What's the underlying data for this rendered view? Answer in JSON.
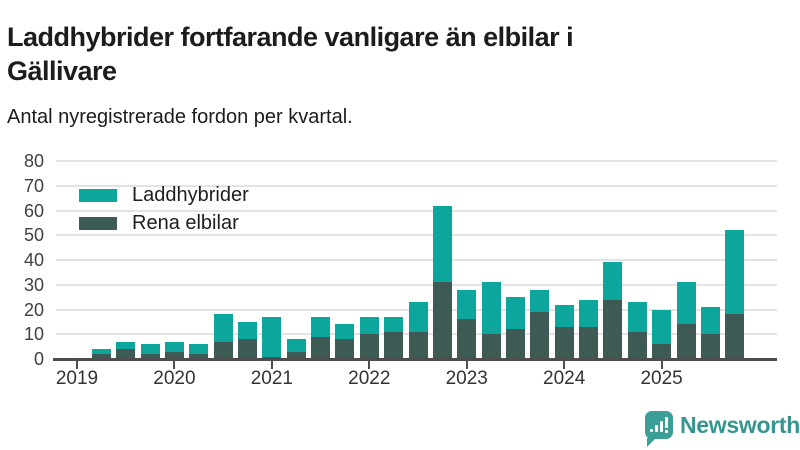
{
  "title": "Laddhybrider fortfarande vanligare än elbilar i Gällivare",
  "subtitle": "Antal nyregistrerade fordon per kvartal.",
  "colors": {
    "laddhybrider": "#0ca69d",
    "rena_elbilar": "#3d5a54",
    "gridline": "#e3e3e3",
    "axis": "#4d4d4d",
    "logo_teal": "#3b9e97"
  },
  "legend": [
    {
      "label": "Laddhybrider",
      "color": "#0ca69d"
    },
    {
      "label": "Rena elbilar",
      "color": "#3d5a54"
    }
  ],
  "chart_data": {
    "type": "bar",
    "stacked": true,
    "title": "Laddhybrider fortfarande vanligare än elbilar i Gällivare",
    "subtitle": "Antal nyregistrerade fordon per kvartal.",
    "categories": [
      "2019 Q1",
      "2019 Q2",
      "2019 Q3",
      "2019 Q4",
      "2020 Q1",
      "2020 Q2",
      "2020 Q3",
      "2020 Q4",
      "2021 Q1",
      "2021 Q2",
      "2021 Q3",
      "2021 Q4",
      "2022 Q1",
      "2022 Q2",
      "2022 Q3",
      "2022 Q4",
      "2023 Q1",
      "2023 Q2",
      "2023 Q3",
      "2023 Q4",
      "2024 Q1",
      "2024 Q2",
      "2024 Q3",
      "2024 Q4",
      "2025 Q1",
      "2025 Q2",
      "2025 Q3",
      "2025 Q4"
    ],
    "series": [
      {
        "name": "Rena elbilar",
        "color": "#3d5a54",
        "values": [
          0,
          2,
          4,
          2,
          3,
          2,
          7,
          8,
          1,
          3,
          9,
          8,
          10,
          11,
          11,
          31,
          16,
          10,
          12,
          19,
          13,
          13,
          24,
          11,
          6,
          14,
          10,
          18
        ]
      },
      {
        "name": "Laddhybrider",
        "color": "#0ca69d",
        "values": [
          0,
          2,
          3,
          4,
          4,
          4,
          11,
          7,
          16,
          5,
          8,
          6,
          7,
          6,
          12,
          31,
          12,
          21,
          13,
          9,
          9,
          11,
          15,
          12,
          14,
          17,
          11,
          34
        ]
      }
    ],
    "totals": [
      0,
      4,
      7,
      6,
      7,
      6,
      18,
      15,
      17,
      8,
      17,
      14,
      17,
      17,
      23,
      62,
      28,
      31,
      25,
      28,
      22,
      24,
      39,
      23,
      20,
      31,
      21,
      52
    ],
    "xlabel": "",
    "ylabel": "",
    "ylim": [
      0,
      80
    ],
    "yticks": [
      0,
      10,
      20,
      30,
      40,
      50,
      60,
      70,
      80
    ],
    "x_tick_labels": [
      "2019",
      "2020",
      "2021",
      "2022",
      "2023",
      "2024",
      "2025"
    ],
    "grid": "horizontal",
    "legend_position": "top-left-inside"
  },
  "footer": {
    "brand": "Newsworthy"
  }
}
